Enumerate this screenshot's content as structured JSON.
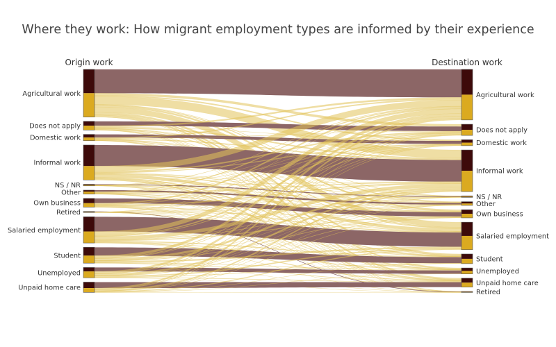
{
  "chart_data": {
    "type": "sankey",
    "title": "Where they work: How migrant employment types are informed by their experience",
    "columns": [
      "Origin work",
      "Destination work"
    ],
    "colors": {
      "same_category_link": "#8c6666",
      "changed_category_link": "#e2c25a",
      "node_top": "#3d0a0a",
      "node_bottom": "#dbaa20",
      "node_border": "#555555"
    },
    "origin_nodes": [
      {
        "label": "Agricultural work",
        "total": 120,
        "same": 60
      },
      {
        "label": "Does not apply",
        "total": 22,
        "same": 11
      },
      {
        "label": "Domestic work",
        "total": 16,
        "same": 8
      },
      {
        "label": "Informal work",
        "total": 88,
        "same": 53
      },
      {
        "label": "NS / NR",
        "total": 4,
        "same": 2
      },
      {
        "label": "Other",
        "total": 10,
        "same": 4
      },
      {
        "label": "Own business",
        "total": 22,
        "same": 12
      },
      {
        "label": "Retired",
        "total": 2,
        "same": 1
      },
      {
        "label": "Salaried employment",
        "total": 66,
        "same": 37
      },
      {
        "label": "Student",
        "total": 40,
        "same": 21
      },
      {
        "label": "Unemployed",
        "total": 26,
        "same": 10
      },
      {
        "label": "Unpaid home care",
        "total": 26,
        "same": 15
      }
    ],
    "destination_nodes": [
      {
        "label": "Agricultural work",
        "total": 136
      },
      {
        "label": "Does not apply",
        "total": 30
      },
      {
        "label": "Domestic work",
        "total": 16
      },
      {
        "label": "Informal work",
        "total": 112
      },
      {
        "label": "NS / NR",
        "total": 4
      },
      {
        "label": "Other",
        "total": 10
      },
      {
        "label": "Own business",
        "total": 22
      },
      {
        "label": "Salaried employment",
        "total": 74
      },
      {
        "label": "Student",
        "total": 26
      },
      {
        "label": "Unemployed",
        "total": 16
      },
      {
        "label": "Unpaid home care",
        "total": 24
      },
      {
        "label": "Retired",
        "total": 2
      }
    ]
  }
}
